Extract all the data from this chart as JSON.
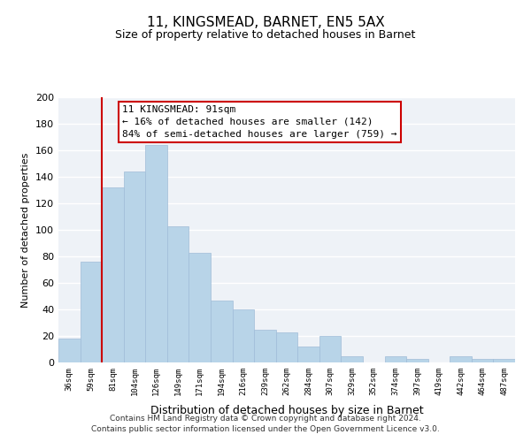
{
  "title1": "11, KINGSMEAD, BARNET, EN5 5AX",
  "title2": "Size of property relative to detached houses in Barnet",
  "xlabel": "Distribution of detached houses by size in Barnet",
  "ylabel": "Number of detached properties",
  "categories": [
    "36sqm",
    "59sqm",
    "81sqm",
    "104sqm",
    "126sqm",
    "149sqm",
    "171sqm",
    "194sqm",
    "216sqm",
    "239sqm",
    "262sqm",
    "284sqm",
    "307sqm",
    "329sqm",
    "352sqm",
    "374sqm",
    "397sqm",
    "419sqm",
    "442sqm",
    "464sqm",
    "487sqm"
  ],
  "values": [
    18,
    76,
    132,
    144,
    164,
    103,
    83,
    47,
    40,
    25,
    23,
    12,
    20,
    5,
    0,
    5,
    3,
    0,
    5,
    3,
    3
  ],
  "bar_color": "#b8d4e8",
  "bar_edge_color": "#a0bcd8",
  "vline_color": "#cc0000",
  "annotation_title": "11 KINGSMEAD: 91sqm",
  "annotation_line1": "← 16% of detached houses are smaller (142)",
  "annotation_line2": "84% of semi-detached houses are larger (759) →",
  "annotation_box_edge": "#cc0000",
  "ylim": [
    0,
    200
  ],
  "yticks": [
    0,
    20,
    40,
    60,
    80,
    100,
    120,
    140,
    160,
    180,
    200
  ],
  "bg_color": "#eef2f7",
  "footer1": "Contains HM Land Registry data © Crown copyright and database right 2024.",
  "footer2": "Contains public sector information licensed under the Open Government Licence v3.0."
}
